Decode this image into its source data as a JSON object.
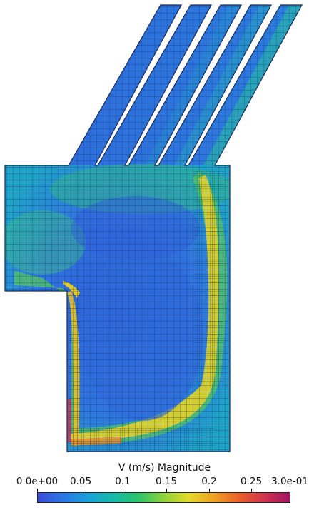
{
  "visualization": {
    "field": "V (m/s) Magnitude",
    "colormap": "Turbo / rainbow (blue→green→yellow→red→magenta)",
    "background": "#ffffff",
    "mesh_edge_color": "#1a2a55"
  },
  "colorbar": {
    "title": "V (m/s) Magnitude",
    "range": [
      0.0,
      0.3
    ],
    "tick_labels": [
      "0.0e+00",
      "0.05",
      "0.1",
      "0.15",
      "0.2",
      "0.25",
      "3.0e-01"
    ],
    "tick_values": [
      0.0,
      0.05,
      0.1,
      0.15,
      0.2,
      0.25,
      0.3
    ]
  }
}
